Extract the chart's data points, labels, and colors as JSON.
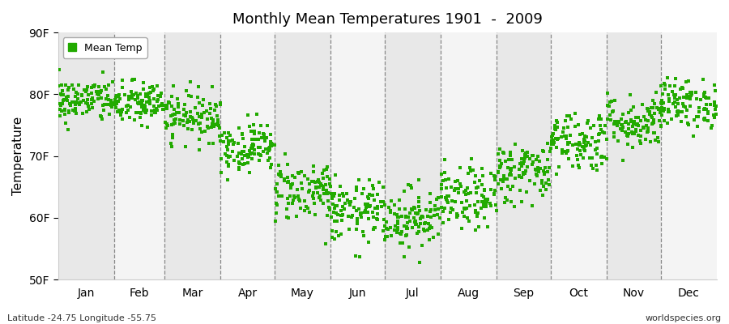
{
  "title": "Monthly Mean Temperatures 1901  -  2009",
  "ylabel": "Temperature",
  "xlabel_labels": [
    "Jan",
    "Feb",
    "Mar",
    "Apr",
    "May",
    "Jun",
    "Jul",
    "Aug",
    "Sep",
    "Oct",
    "Nov",
    "Dec"
  ],
  "ytick_labels": [
    "50F",
    "60F",
    "70F",
    "80F",
    "90F"
  ],
  "ytick_values": [
    50,
    60,
    70,
    80,
    90
  ],
  "ylim": [
    50,
    90
  ],
  "xlim": [
    0,
    365
  ],
  "legend_label": "Mean Temp",
  "marker_color": "#22AA00",
  "bg_color": "#ffffff",
  "band_color_odd": "#e8e8e8",
  "band_color_even": "#f4f4f4",
  "footer_left": "Latitude -24.75 Longitude -55.75",
  "footer_right": "worldspecies.org",
  "monthly_means": [
    79.0,
    78.5,
    76.5,
    71.5,
    64.5,
    61.0,
    60.0,
    63.0,
    67.5,
    72.5,
    75.5,
    78.5
  ],
  "monthly_stds": [
    1.8,
    1.8,
    2.0,
    2.0,
    2.5,
    2.5,
    2.5,
    2.5,
    2.5,
    2.5,
    2.2,
    2.0
  ],
  "n_years": 109,
  "month_days": [
    31,
    28,
    31,
    30,
    31,
    30,
    31,
    31,
    30,
    31,
    30,
    31
  ]
}
